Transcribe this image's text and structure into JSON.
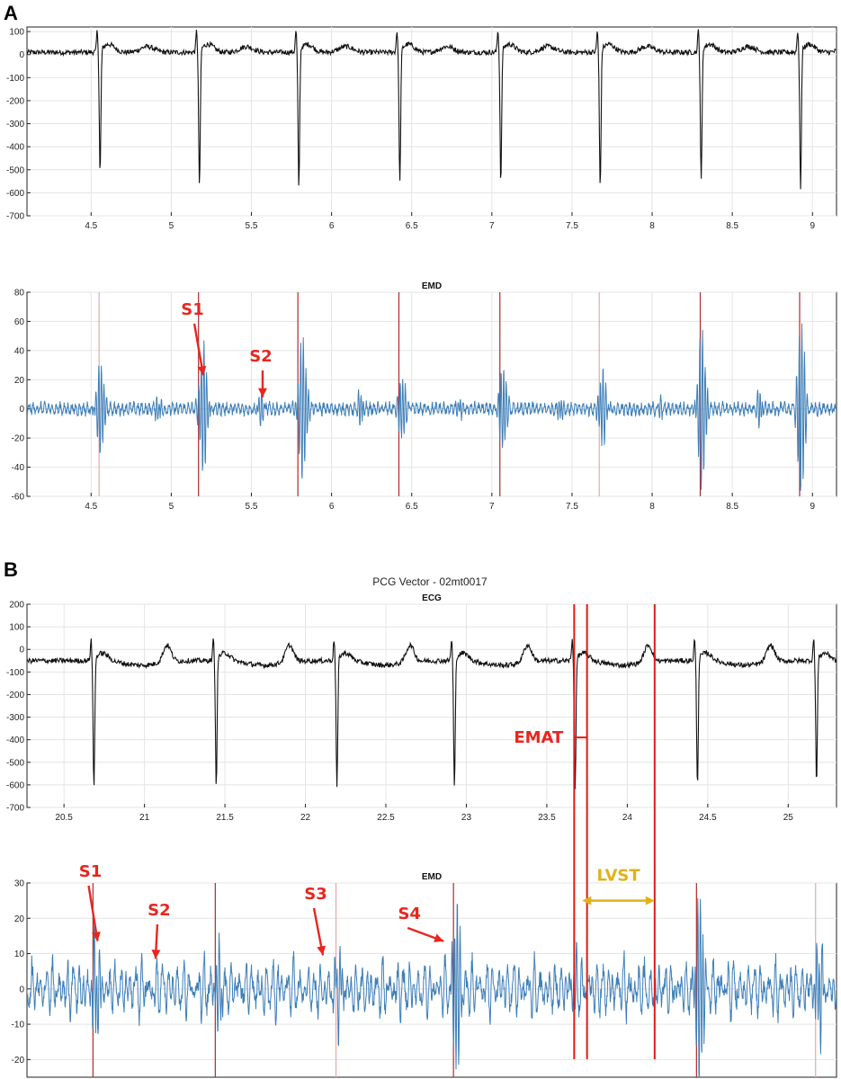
{
  "panels": [
    {
      "letter": "A"
    },
    {
      "letter": "B",
      "title": "PCG Vector - 02mt0017"
    }
  ],
  "colors": {
    "ecg": "#111111",
    "emd": "#3d7fb8",
    "marker_red": "#b02a2a",
    "marker_pink": "#e4a9a9",
    "annotation_red": "#e8261f",
    "annotation_yellow": "#e0b21a"
  },
  "chart_data": [
    {
      "id": "A-ecg",
      "type": "line",
      "title": "",
      "xlabel": "",
      "ylabel": "",
      "xlim": [
        4.1,
        9.15
      ],
      "ylim": [
        -700,
        120
      ],
      "x_ticks": [
        4.5,
        5,
        5.5,
        6,
        6.5,
        7,
        7.5,
        8,
        8.5,
        9
      ],
      "x_tick_labels": [
        "4.5",
        "5",
        "5.5",
        "6",
        "6.5",
        "7",
        "7.5",
        "8",
        "8.5",
        "9"
      ],
      "y_ticks": [
        100,
        0,
        -100,
        -200,
        -300,
        -400,
        -500,
        -600,
        -700
      ],
      "y_tick_labels": [
        "100",
        "0",
        "-100",
        "-200",
        "-300",
        "-400",
        "-500",
        "-600",
        "-700"
      ],
      "grid": true,
      "series": [
        {
          "beats": [
            4.55,
            5.17,
            5.79,
            6.42,
            7.05,
            7.67,
            8.3,
            8.92
          ],
          "r_peak": 90,
          "s_trough": [
            -530,
            -580,
            -590,
            -570,
            -570,
            -590,
            -560,
            -590
          ],
          "baseline": 10
        }
      ]
    },
    {
      "id": "A-emd",
      "type": "line",
      "title": "EMD",
      "xlabel": "",
      "ylabel": "",
      "xlim": [
        4.1,
        9.15
      ],
      "ylim": [
        -60,
        80
      ],
      "x_ticks": [
        4.5,
        5,
        5.5,
        6,
        6.5,
        7,
        7.5,
        8,
        8.5,
        9
      ],
      "x_tick_labels": [
        "4.5",
        "5",
        "5.5",
        "6",
        "6.5",
        "7",
        "7.5",
        "8",
        "8.5",
        "9"
      ],
      "y_ticks": [
        80,
        60,
        40,
        20,
        0,
        -20,
        -40,
        -60
      ],
      "y_tick_labels": [
        "80",
        "60",
        "40",
        "20",
        "0",
        "-20",
        "-40",
        "-60"
      ],
      "grid": true,
      "series": [
        {
          "bursts": [
            4.56,
            5.2,
            5.82,
            6.44,
            7.07,
            7.69,
            8.31,
            8.93
          ],
          "amplitude": [
            34,
            46,
            52,
            22,
            30,
            27,
            57,
            62
          ]
        }
      ],
      "markers": {
        "dark": [
          5.17,
          5.79,
          6.42,
          7.05,
          8.3,
          8.92
        ],
        "light": [
          4.55,
          7.67
        ]
      },
      "annotations": [
        {
          "label": "S1",
          "x": 5.2,
          "y": 23
        },
        {
          "label": "S2",
          "x": 5.57,
          "y": 8
        }
      ]
    },
    {
      "id": "B-ecg",
      "type": "line",
      "title": "ECG",
      "xlabel": "",
      "ylabel": "",
      "xlim": [
        20.27,
        25.3
      ],
      "ylim": [
        -700,
        200
      ],
      "x_ticks": [
        20.5,
        21,
        21.5,
        22,
        22.5,
        23,
        23.5,
        24,
        24.5,
        25
      ],
      "x_tick_labels": [
        "20.5",
        "21",
        "21.5",
        "22",
        "22.5",
        "23",
        "23.5",
        "24",
        "24.5",
        "25"
      ],
      "y_ticks": [
        200,
        100,
        0,
        -100,
        -200,
        -300,
        -400,
        -500,
        -600,
        -700
      ],
      "y_tick_labels": [
        "200",
        "100",
        "0",
        "-100",
        "-200",
        "-300",
        "-400",
        "-500",
        "-600",
        "-700"
      ],
      "grid": true,
      "series": [
        {
          "beats": [
            20.68,
            21.44,
            22.19,
            22.92,
            23.67,
            24.43,
            25.17
          ],
          "s_trough": [
            -620,
            -610,
            -620,
            -620,
            -620,
            -620,
            -610
          ],
          "t_wave": 45,
          "baseline": -50
        }
      ],
      "annotations": [
        {
          "label": "EMAT",
          "x_start": 23.67,
          "x_end": 23.75,
          "y": -390
        }
      ]
    },
    {
      "id": "B-emd",
      "type": "line",
      "title": "EMD",
      "xlabel": "",
      "ylabel": "",
      "xlim": [
        20.27,
        25.3
      ],
      "ylim": [
        -25,
        30
      ],
      "y_ticks": [
        30,
        20,
        10,
        0,
        -10,
        -20
      ],
      "y_tick_labels": [
        "30",
        "20",
        "10",
        "0",
        "-10",
        "-20"
      ],
      "grid": true,
      "series": [
        {
          "bursts": [
            20.7,
            21.46,
            22.21,
            22.94,
            23.68,
            24.45,
            25.19
          ],
          "amplitude": [
            14,
            10,
            10,
            24,
            6,
            28,
            12
          ]
        }
      ],
      "markers": {
        "dark": [
          20.68,
          21.44,
          22.92,
          24.43
        ],
        "light": [
          22.19,
          25.17
        ]
      },
      "annotations": [
        {
          "label": "S1",
          "x": 20.72,
          "y": 12
        },
        {
          "label": "S2",
          "x": 21.08,
          "y": 7
        },
        {
          "label": "S3",
          "x": 22.12,
          "y": 8
        },
        {
          "label": "S4",
          "x": 22.87,
          "y": 12
        },
        {
          "label": "LVST",
          "x_start": 23.72,
          "x_end": 24.17,
          "y": 25
        }
      ],
      "red_lines": [
        23.67,
        23.75,
        24.17
      ]
    }
  ]
}
